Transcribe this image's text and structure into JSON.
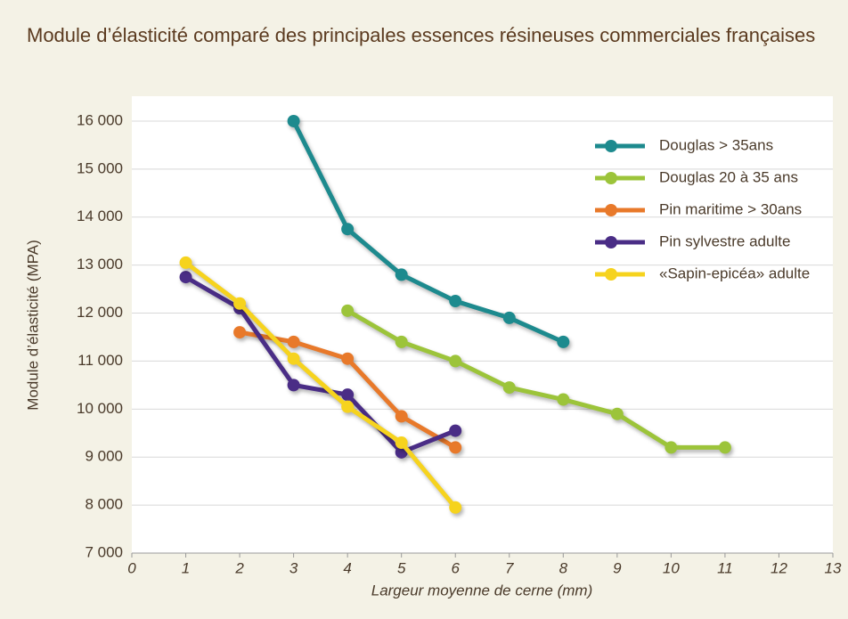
{
  "chart_data": {
    "type": "line",
    "title": "Module d’élasticité comparé des principales essences résineuses commerciales françaises",
    "x_label": "Largeur moyenne de cerne (mm)",
    "y_label": "Module d’élasticité (MPA)",
    "xlim": [
      0,
      13
    ],
    "xticks": [
      0,
      1,
      2,
      3,
      4,
      5,
      6,
      7,
      8,
      9,
      10,
      11,
      12,
      13
    ],
    "ylim": [
      7000,
      16500
    ],
    "yticks": [
      {
        "value": 7000,
        "label": "7 000"
      },
      {
        "value": 8000,
        "label": "8 000"
      },
      {
        "value": 9000,
        "label": "9 000"
      },
      {
        "value": 10000,
        "label": "10 000"
      },
      {
        "value": 11000,
        "label": "11 000"
      },
      {
        "value": 12000,
        "label": "12 000"
      },
      {
        "value": 13000,
        "label": "13 000"
      },
      {
        "value": 14000,
        "label": "14 000"
      },
      {
        "value": 15000,
        "label": "15 000"
      },
      {
        "value": 16000,
        "label": "16 000"
      }
    ],
    "grid": true,
    "legend": "upper right",
    "series": [
      {
        "name": "Douglas > 35ans",
        "color": "#1d8a8e",
        "x": [
          3,
          4,
          5,
          6,
          7,
          8
        ],
        "values": [
          16000,
          13750,
          12800,
          12250,
          11900,
          11400
        ]
      },
      {
        "name": "Douglas 20 à 35 ans",
        "color": "#9cc43a",
        "x": [
          4,
          5,
          6,
          7,
          8,
          9,
          10,
          11
        ],
        "values": [
          12050,
          11400,
          11000,
          10450,
          10200,
          9900,
          9200,
          9200
        ]
      },
      {
        "name": "Pin maritime > 30ans",
        "color": "#e8792a",
        "x": [
          2,
          3,
          4,
          5,
          6
        ],
        "values": [
          11600,
          11400,
          11050,
          9850,
          9200
        ]
      },
      {
        "name": "Pin sylvestre adulte",
        "color": "#4a2d86",
        "x": [
          1,
          2,
          3,
          4,
          5,
          6
        ],
        "values": [
          12750,
          12100,
          10500,
          10300,
          9100,
          9550
        ]
      },
      {
        "name": "«Sapin-epicéa» adulte",
        "color": "#f6d31e",
        "x": [
          1,
          2,
          3,
          4,
          5,
          6
        ],
        "values": [
          13050,
          12200,
          11050,
          10050,
          9300,
          7950
        ]
      }
    ]
  }
}
